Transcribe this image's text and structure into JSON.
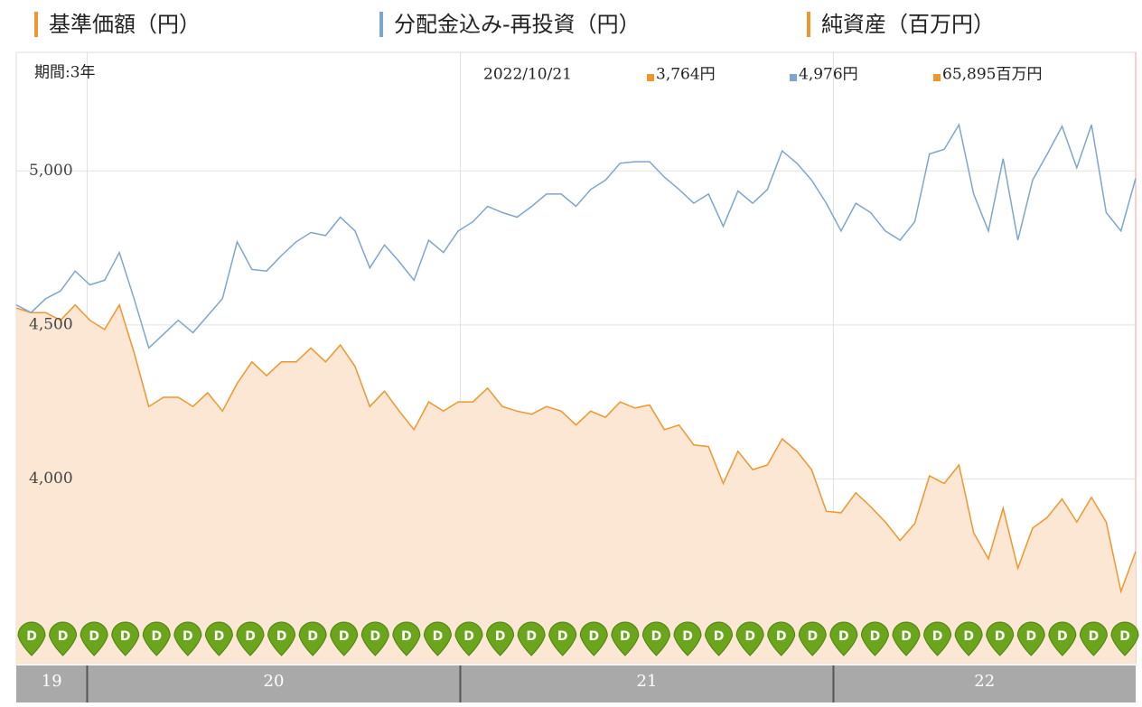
{
  "chart_data": {
    "type": "line",
    "series": [
      {
        "name": "基準価額（円）",
        "color": "#f0962e",
        "area": true,
        "area_color": "#fbe7d3",
        "values": [
          4555,
          4540,
          4540,
          4515,
          4565,
          4515,
          4485,
          4565,
          4410,
          4235,
          4265,
          4265,
          4235,
          4280,
          4220,
          4310,
          4380,
          4335,
          4380,
          4380,
          4425,
          4380,
          4435,
          4365,
          4235,
          4285,
          4220,
          4160,
          4250,
          4220,
          4250,
          4250,
          4295,
          4235,
          4220,
          4210,
          4235,
          4220,
          4175,
          4220,
          4200,
          4250,
          4230,
          4240,
          4160,
          4175,
          4110,
          4105,
          3985,
          4090,
          4030,
          4045,
          4130,
          4090,
          4030,
          3895,
          3890,
          3955,
          3910,
          3860,
          3800,
          3855,
          4010,
          3985,
          4045,
          3825,
          3740,
          3905,
          3710,
          3840,
          3875,
          3935,
          3860,
          3940,
          3860,
          3635,
          3764
        ]
      },
      {
        "name": "分配金込み-再投資（円）",
        "color": "#7ea6cc",
        "area": false,
        "values": [
          4565,
          4540,
          4585,
          4610,
          4675,
          4630,
          4645,
          4735,
          4585,
          4425,
          4470,
          4515,
          4475,
          4530,
          4585,
          4770,
          4680,
          4675,
          4725,
          4770,
          4800,
          4790,
          4850,
          4805,
          4685,
          4760,
          4705,
          4645,
          4775,
          4735,
          4805,
          4835,
          4885,
          4865,
          4850,
          4885,
          4925,
          4925,
          4885,
          4940,
          4970,
          5025,
          5030,
          5030,
          4980,
          4940,
          4895,
          4925,
          4820,
          4935,
          4895,
          4940,
          5065,
          5025,
          4970,
          4895,
          4805,
          4895,
          4865,
          4805,
          4775,
          4835,
          5055,
          5070,
          5150,
          4925,
          4805,
          5040,
          4775,
          4970,
          5055,
          5145,
          5010,
          5150,
          4865,
          4805,
          4976
        ]
      }
    ],
    "net_assets": {
      "name": "純資産（百万円）",
      "color": "#f0962e"
    },
    "period_label": "期間:3年",
    "date": "2022/10/21",
    "latest": [
      {
        "text": "3,764円",
        "color": "#f0962e"
      },
      {
        "text": "4,976円",
        "color": "#7ea6cc"
      },
      {
        "text": "65,895百万円",
        "color": "#f0962e"
      }
    ],
    "ylim": [
      3400,
      5385
    ],
    "yticks": [
      {
        "value": 4000,
        "label": "4,000"
      },
      {
        "value": 4500,
        "label": "4,500"
      },
      {
        "value": 5000,
        "label": "5,000"
      }
    ],
    "xlim": [
      2019.81,
      2022.81
    ],
    "xticks": [
      {
        "value": 2019,
        "label": "19"
      },
      {
        "value": 2020,
        "label": "20"
      },
      {
        "value": 2021,
        "label": "21"
      },
      {
        "value": 2022,
        "label": "22"
      }
    ],
    "grid": true,
    "dividend_markers": [
      "D",
      "D",
      "D",
      "D",
      "D",
      "D",
      "D",
      "D",
      "D",
      "D",
      "D",
      "D",
      "D",
      "D",
      "D",
      "D",
      "D",
      "D",
      "D",
      "D",
      "D",
      "D",
      "D",
      "D",
      "D",
      "D",
      "D",
      "D",
      "D",
      "D",
      "D",
      "D",
      "D",
      "D",
      "D",
      "D"
    ]
  }
}
